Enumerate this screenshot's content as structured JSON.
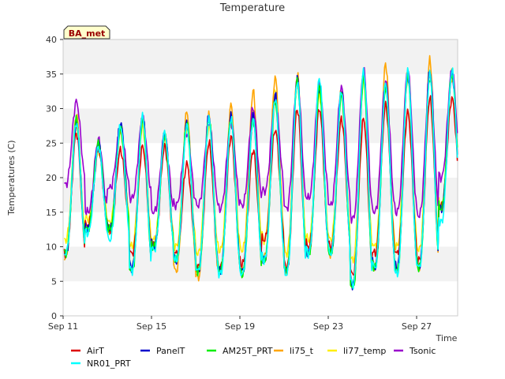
{
  "chart_data": {
    "type": "line",
    "title": "Temperature",
    "xlabel": "Time",
    "ylabel": "Temperatures (C)",
    "badge": "BA_met",
    "ylim": [
      0,
      40
    ],
    "yticks": [
      0,
      5,
      10,
      15,
      20,
      25,
      30,
      35,
      40
    ],
    "xlim": [
      "2021-09-11",
      "2021-09-29"
    ],
    "xticks": [
      {
        "label": "Sep 11",
        "day": 0
      },
      {
        "label": "Sep 15",
        "day": 4
      },
      {
        "label": "Sep 19",
        "day": 8
      },
      {
        "label": "Sep 23",
        "day": 12
      },
      {
        "label": "Sep 27",
        "day": 16
      }
    ],
    "legend_position": "bottom",
    "grid": "horizontal bands",
    "days": [
      "Sep 11",
      "Sep 12",
      "Sep 13",
      "Sep 14",
      "Sep 15",
      "Sep 16",
      "Sep 17",
      "Sep 18",
      "Sep 19",
      "Sep 20",
      "Sep 21",
      "Sep 22",
      "Sep 23",
      "Sep 24",
      "Sep 25",
      "Sep 26",
      "Sep 27",
      "Sep 28"
    ],
    "series": [
      {
        "name": "AirT",
        "color": "#dd0000",
        "daily_max": [
          26.5,
          24.0,
          24.0,
          24.5,
          24.5,
          22.0,
          25.0,
          26.0,
          24.0,
          27.0,
          30.0,
          30.0,
          28.5,
          28.5,
          30.5,
          29.5,
          31.5,
          31.5
        ],
        "daily_min": [
          9.0,
          13.0,
          12.5,
          9.0,
          10.0,
          9.0,
          7.0,
          7.0,
          7.5,
          11.0,
          7.0,
          10.0,
          10.0,
          6.0,
          9.0,
          9.0,
          8.0,
          16.0
        ]
      },
      {
        "name": "PanelT",
        "color": "#0000cc",
        "daily_max": [
          28.0,
          25.0,
          28.0,
          29.0,
          26.5,
          28.0,
          29.0,
          29.0,
          29.0,
          32.0,
          34.5,
          33.0,
          32.5,
          35.0,
          33.5,
          35.0,
          35.5,
          35.0
        ],
        "daily_min": [
          9.0,
          12.5,
          12.5,
          7.0,
          10.0,
          8.0,
          6.5,
          6.5,
          6.5,
          8.0,
          6.5,
          9.0,
          9.0,
          4.5,
          7.0,
          7.0,
          7.0,
          15.5
        ]
      },
      {
        "name": "AM25T_PRT",
        "color": "#00ee00",
        "daily_max": [
          28.5,
          25.0,
          27.0,
          28.5,
          26.0,
          28.0,
          28.5,
          28.5,
          28.5,
          31.0,
          34.0,
          33.0,
          32.0,
          34.5,
          33.0,
          35.0,
          34.5,
          35.0
        ],
        "daily_min": [
          9.0,
          12.5,
          12.5,
          6.5,
          10.0,
          8.0,
          6.5,
          6.5,
          6.0,
          8.0,
          6.5,
          9.0,
          9.0,
          4.0,
          7.0,
          6.5,
          7.0,
          15.5
        ]
      },
      {
        "name": "li75_t",
        "color": "#ffa500",
        "daily_max": [
          29.0,
          24.5,
          27.0,
          29.0,
          26.5,
          29.5,
          29.0,
          30.5,
          32.5,
          34.5,
          35.0,
          33.0,
          33.0,
          35.5,
          36.5,
          35.5,
          37.0,
          35.5
        ],
        "daily_min": [
          8.5,
          12.5,
          12.5,
          7.0,
          10.0,
          6.5,
          5.5,
          6.5,
          6.5,
          8.5,
          6.5,
          9.0,
          9.0,
          4.5,
          7.0,
          6.5,
          7.0,
          15.5
        ]
      },
      {
        "name": "li77_temp",
        "color": "#ffee00",
        "daily_max": [
          27.5,
          24.0,
          26.5,
          27.5,
          25.5,
          27.0,
          27.5,
          28.0,
          30.0,
          33.0,
          34.0,
          32.0,
          32.0,
          34.0,
          33.0,
          34.5,
          35.0,
          34.5
        ],
        "daily_min": [
          11.0,
          14.0,
          13.5,
          10.0,
          11.0,
          10.0,
          9.0,
          9.5,
          9.5,
          11.0,
          9.0,
          11.0,
          11.0,
          8.0,
          10.0,
          10.0,
          9.5,
          16.0
        ]
      },
      {
        "name": "Tsonic",
        "color": "#9900cc",
        "daily_max": [
          31.0,
          25.5,
          27.0,
          28.5,
          26.0,
          26.5,
          28.0,
          28.0,
          30.0,
          31.0,
          34.0,
          33.5,
          33.0,
          35.5,
          34.0,
          35.5,
          35.0,
          35.5
        ],
        "daily_min": [
          19.0,
          15.0,
          18.5,
          17.0,
          15.0,
          16.0,
          16.0,
          15.5,
          16.0,
          18.0,
          15.5,
          17.0,
          16.0,
          14.0,
          15.0,
          15.0,
          14.5,
          20.0
        ]
      },
      {
        "name": "NR01_PRT",
        "color": "#00ffff",
        "daily_max": [
          28.0,
          24.5,
          27.5,
          29.0,
          26.5,
          27.5,
          28.5,
          28.5,
          28.5,
          31.5,
          34.0,
          34.5,
          32.5,
          35.5,
          33.5,
          35.5,
          35.0,
          35.5
        ],
        "daily_min": [
          9.0,
          12.0,
          11.0,
          6.5,
          9.5,
          8.0,
          6.5,
          6.0,
          6.0,
          8.0,
          6.0,
          9.0,
          9.0,
          4.5,
          7.0,
          6.0,
          7.0,
          13.5
        ]
      }
    ]
  }
}
